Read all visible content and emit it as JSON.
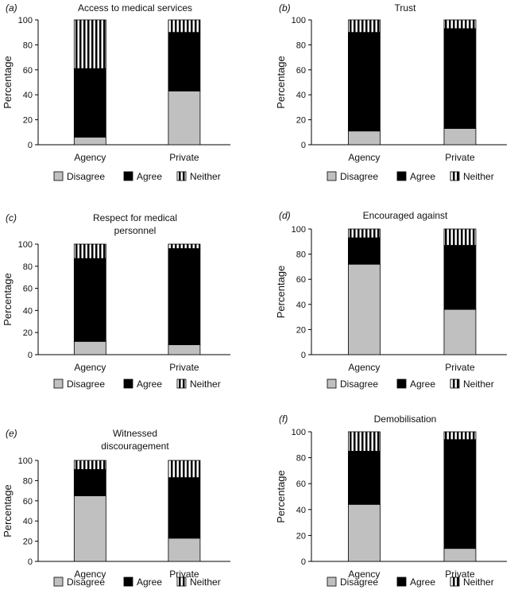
{
  "chart_data": [
    {
      "type": "bar",
      "stacked": true,
      "panel_label": "(a)",
      "title": [
        "Access to medical services"
      ],
      "ylabel": "Percentage",
      "xlabel": "",
      "ylim": [
        0,
        100
      ],
      "yticks": [
        "0",
        "20",
        "40",
        "60",
        "80",
        "100"
      ],
      "categories": [
        "Agency",
        "Private"
      ],
      "series": [
        {
          "name": "Disagree",
          "values": [
            6,
            43
          ]
        },
        {
          "name": "Agree",
          "values": [
            55,
            47
          ]
        },
        {
          "name": "Neither",
          "values": [
            39,
            10
          ]
        }
      ]
    },
    {
      "type": "bar",
      "stacked": true,
      "panel_label": "(b)",
      "title": [
        "Trust"
      ],
      "ylabel": "Percentage",
      "xlabel": "",
      "ylim": [
        0,
        100
      ],
      "yticks": [
        "0",
        "20",
        "40",
        "60",
        "80",
        "100"
      ],
      "categories": [
        "Agency",
        "Private"
      ],
      "series": [
        {
          "name": "Disagree",
          "values": [
            11,
            13
          ]
        },
        {
          "name": "Agree",
          "values": [
            79,
            80
          ]
        },
        {
          "name": "Neither",
          "values": [
            10,
            7
          ]
        }
      ]
    },
    {
      "type": "bar",
      "stacked": true,
      "panel_label": "(c)",
      "title": [
        "Respect for medical",
        "personnel"
      ],
      "ylabel": "Percentage",
      "xlabel": "",
      "ylim": [
        0,
        100
      ],
      "yticks": [
        "0",
        "20",
        "40",
        "60",
        "80",
        "100"
      ],
      "categories": [
        "Agency",
        "Private"
      ],
      "series": [
        {
          "name": "Disagree",
          "values": [
            12,
            9
          ]
        },
        {
          "name": "Agree",
          "values": [
            75,
            87
          ]
        },
        {
          "name": "Neither",
          "values": [
            13,
            4
          ]
        }
      ]
    },
    {
      "type": "bar",
      "stacked": true,
      "panel_label": "(d)",
      "title": [
        "Encouraged against"
      ],
      "ylabel": "Percentage",
      "xlabel": "",
      "ylim": [
        0,
        100
      ],
      "yticks": [
        "0",
        "20",
        "40",
        "60",
        "80",
        "100"
      ],
      "categories": [
        "Agency",
        "Private"
      ],
      "series": [
        {
          "name": "Disagree",
          "values": [
            72,
            36
          ]
        },
        {
          "name": "Agree",
          "values": [
            21,
            51
          ]
        },
        {
          "name": "Neither",
          "values": [
            7,
            13
          ]
        }
      ]
    },
    {
      "type": "bar",
      "stacked": true,
      "panel_label": "(e)",
      "title": [
        "Witnessed",
        "discouragement"
      ],
      "ylabel": "Percentage",
      "xlabel": "",
      "ylim": [
        0,
        100
      ],
      "yticks": [
        "0",
        "20",
        "40",
        "60",
        "80",
        "100"
      ],
      "categories": [
        "Agency",
        "Private"
      ],
      "series": [
        {
          "name": "Disagree",
          "values": [
            65,
            23
          ]
        },
        {
          "name": "Agree",
          "values": [
            26,
            60
          ]
        },
        {
          "name": "Neither",
          "values": [
            9,
            17
          ]
        }
      ]
    },
    {
      "type": "bar",
      "stacked": true,
      "panel_label": "(f)",
      "title": [
        "Demobilisation"
      ],
      "ylabel": "Percentage",
      "xlabel": "",
      "ylim": [
        0,
        100
      ],
      "yticks": [
        "0",
        "20",
        "40",
        "60",
        "80",
        "100"
      ],
      "categories": [
        "Agency",
        "Private"
      ],
      "series": [
        {
          "name": "Disagree",
          "values": [
            44,
            10
          ]
        },
        {
          "name": "Agree",
          "values": [
            41,
            84
          ]
        },
        {
          "name": "Neither",
          "values": [
            15,
            6
          ]
        }
      ]
    }
  ],
  "colors": {
    "Disagree": "#c0c0c0",
    "Agree": "#000000",
    "Neither": "striped"
  }
}
